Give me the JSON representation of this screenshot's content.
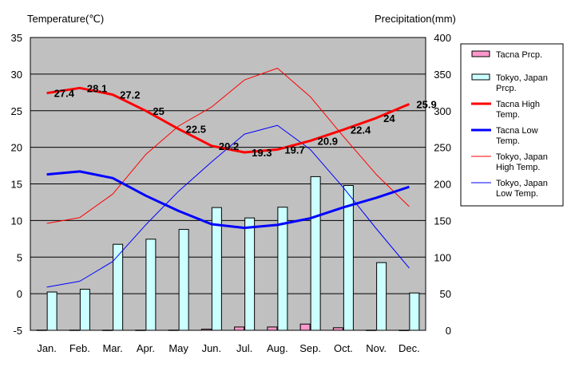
{
  "chart_data": {
    "type": "bar+line",
    "categories": [
      "Jan.",
      "Feb.",
      "Mar.",
      "Apr.",
      "May",
      "Jun.",
      "Jul.",
      "Aug.",
      "Sep.",
      "Oct.",
      "Nov.",
      "Dec."
    ],
    "y_left": {
      "label": "Temperature(℃)",
      "range": [
        -5,
        35
      ],
      "ticks": [
        -5,
        0,
        5,
        10,
        15,
        20,
        25,
        30,
        35
      ]
    },
    "y_right": {
      "label": "Precipitation(mm)",
      "range": [
        0,
        400
      ],
      "ticks": [
        0,
        50,
        100,
        150,
        200,
        250,
        300,
        350,
        400
      ]
    },
    "grid": "horizontal",
    "legend_position": "right",
    "series": [
      {
        "name": "Tacna Prcp.",
        "kind": "bar",
        "axis": "right",
        "color": "#ff99cc",
        "values": [
          0.3,
          0.3,
          0.2,
          0.2,
          0.3,
          1.5,
          4.5,
          4.5,
          8.5,
          3.5,
          0.2,
          0.1
        ]
      },
      {
        "name": "Tokyo, Japan Prcp.",
        "kind": "bar",
        "axis": "right",
        "color": "#ccffff",
        "values": [
          52.3,
          56.1,
          117.5,
          124.5,
          137.8,
          167.7,
          153.5,
          168.2,
          209.9,
          197.8,
          92.5,
          51.0
        ]
      },
      {
        "name": "Tacna High Temp.",
        "kind": "line",
        "axis": "left",
        "color": "#ff0000",
        "width": 3,
        "values": [
          27.4,
          28.1,
          27.2,
          25,
          22.5,
          20.2,
          19.3,
          19.7,
          20.9,
          22.4,
          24,
          25.9
        ],
        "labels": [
          "27.4",
          "28.1",
          "27.2",
          "25",
          "22.5",
          "20.2",
          "19.3",
          "19.7",
          "20.9",
          "22.4",
          "24",
          "25.9"
        ]
      },
      {
        "name": "Tacna Low Temp.",
        "kind": "line",
        "axis": "left",
        "color": "#0000ff",
        "width": 3,
        "values": [
          16.3,
          16.7,
          15.8,
          13.4,
          11.3,
          9.5,
          9.0,
          9.4,
          10.3,
          11.8,
          13.1,
          14.6
        ]
      },
      {
        "name": "Tokyo, Japan High Temp.",
        "kind": "line",
        "axis": "left",
        "color": "#ff0000",
        "width": 1,
        "values": [
          9.6,
          10.4,
          13.6,
          19.0,
          22.9,
          25.5,
          29.2,
          30.8,
          26.9,
          21.5,
          16.3,
          11.9
        ]
      },
      {
        "name": "Tokyo, Japan Low Temp.",
        "kind": "line",
        "axis": "left",
        "color": "#0000ff",
        "width": 1,
        "values": [
          0.9,
          1.7,
          4.4,
          9.4,
          14.0,
          18.0,
          21.8,
          23.0,
          19.7,
          14.5,
          8.9,
          3.5
        ]
      }
    ],
    "legend": [
      {
        "series": "Tacna Prcp.",
        "label": [
          "Tacna Prcp."
        ]
      },
      {
        "series": "Tokyo, Japan Prcp.",
        "label": [
          "Tokyo, Japan",
          "Prcp."
        ]
      },
      {
        "series": "Tacna High Temp.",
        "label": [
          "Tacna High",
          "Temp."
        ]
      },
      {
        "series": "Tacna Low Temp.",
        "label": [
          "Tacna Low",
          "Temp."
        ]
      },
      {
        "series": "Tokyo, Japan High Temp.",
        "label": [
          "Tokyo, Japan",
          "High Temp."
        ]
      },
      {
        "series": "Tokyo, Japan Low Temp.",
        "label": [
          "Tokyo, Japan",
          "Low Temp."
        ]
      }
    ]
  },
  "colors": {
    "plot_background": "#c0c0c0",
    "page_background": "#ffffff"
  }
}
